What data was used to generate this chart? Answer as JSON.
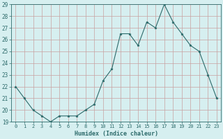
{
  "xlabel": "Humidex (Indice chaleur)",
  "hours": [
    0,
    1,
    2,
    3,
    4,
    5,
    6,
    7,
    8,
    9,
    10,
    11,
    12,
    13,
    14,
    15,
    16,
    17,
    18,
    19,
    20,
    21,
    22,
    23
  ],
  "values": [
    22,
    21,
    20,
    19.5,
    19,
    19.5,
    19.5,
    19.5,
    20,
    20.5,
    22.5,
    23.5,
    26.5,
    26.5,
    25.5,
    27.5,
    27,
    29,
    27.5,
    26.5,
    25.5,
    25,
    23,
    21
  ],
  "line_color": "#2d6b6b",
  "marker": "*",
  "bg_color": "#d6eff0",
  "grid_color_major": "#c8a0a0",
  "axis_color": "#2d6b6b",
  "ylim": [
    19,
    29
  ],
  "yticks": [
    19,
    20,
    21,
    22,
    23,
    24,
    25,
    26,
    27,
    28,
    29
  ],
  "xlim_min": -0.5,
  "xlim_max": 23.5
}
